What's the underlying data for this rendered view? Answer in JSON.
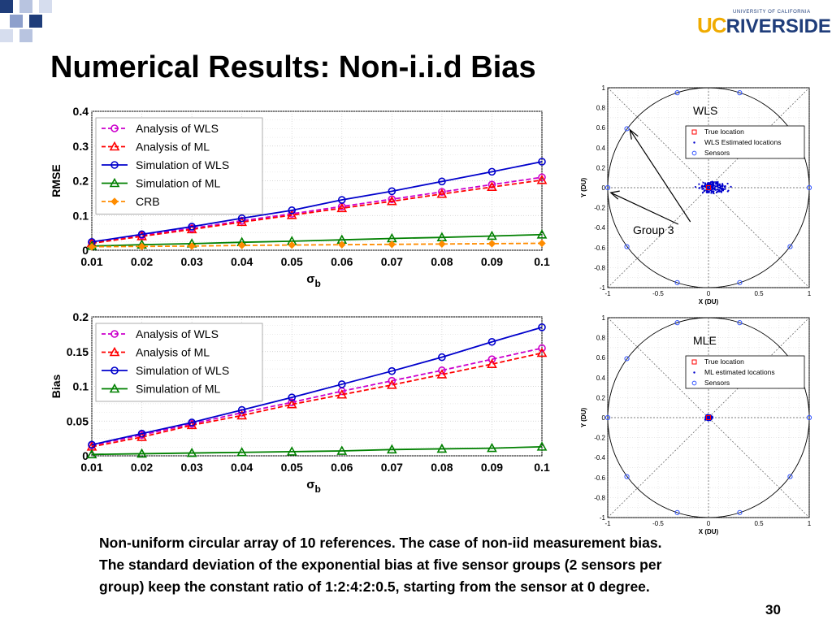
{
  "slide": {
    "title": "Numerical Results: Non-i.i.d Bias",
    "logo_uc": "UC",
    "logo_riverside": "RIVERSIDE",
    "logo_small": "UNIVERSITY OF CALIFORNIA",
    "caption": "Non-uniform circular array of 10 references. The case of non-iid measurement bias. The standard deviation of the exponential bias at five sensor groups (2 sensors per group) keep the constant ratio of 1:2:4:2:0.5, starting from the sensor at 0 degree.",
    "page_number": "30",
    "colors": {
      "magenta": "#cc00cc",
      "red": "#ff0000",
      "blue": "#0000cc",
      "green": "#008000",
      "orange": "#ff8c00",
      "sensor": "#3355ff"
    }
  },
  "chart_data": [
    {
      "type": "line",
      "ylabel": "RMSE",
      "xlabel_main": "σ",
      "xlabel_sub": "b",
      "xlim": [
        0.01,
        0.1
      ],
      "ylim": [
        0,
        0.4
      ],
      "x": [
        0.01,
        0.02,
        0.03,
        0.04,
        0.05,
        0.06,
        0.07,
        0.08,
        0.09,
        0.1
      ],
      "xticks": [
        "0.01",
        "0.02",
        "0.03",
        "0.04",
        "0.05",
        "0.06",
        "0.07",
        "0.08",
        "0.09",
        "0.1"
      ],
      "yticks": [
        "0",
        "0.1",
        "0.2",
        "0.3",
        "0.4"
      ],
      "ytick_values": [
        0,
        0.1,
        0.2,
        0.3,
        0.4
      ],
      "grid": true,
      "legend_position": "top-left",
      "series": [
        {
          "name": "Analysis of WLS",
          "color": "#cc00cc",
          "dash": true,
          "marker": "circle",
          "values": [
            0.022,
            0.043,
            0.063,
            0.085,
            0.105,
            0.126,
            0.147,
            0.168,
            0.189,
            0.21
          ]
        },
        {
          "name": "Analysis of ML",
          "color": "#ff0000",
          "dash": true,
          "marker": "triangle",
          "values": [
            0.02,
            0.04,
            0.06,
            0.081,
            0.101,
            0.121,
            0.141,
            0.162,
            0.182,
            0.202
          ]
        },
        {
          "name": "Simulation of WLS",
          "color": "#0000cc",
          "dash": false,
          "marker": "circle",
          "values": [
            0.024,
            0.046,
            0.068,
            0.092,
            0.115,
            0.145,
            0.17,
            0.198,
            0.226,
            0.255
          ]
        },
        {
          "name": "Simulation of ML",
          "color": "#008000",
          "dash": false,
          "marker": "triangle",
          "values": [
            0.012,
            0.016,
            0.019,
            0.023,
            0.026,
            0.03,
            0.034,
            0.037,
            0.041,
            0.045
          ]
        },
        {
          "name": "CRB",
          "color": "#ff8c00",
          "dash": true,
          "marker": "diamond",
          "values": [
            0.01,
            0.011,
            0.012,
            0.014,
            0.015,
            0.016,
            0.017,
            0.018,
            0.019,
            0.02
          ]
        }
      ]
    },
    {
      "type": "line",
      "ylabel": "Bias",
      "xlabel_main": "σ",
      "xlabel_sub": "b",
      "xlim": [
        0.01,
        0.1
      ],
      "ylim": [
        0,
        0.2
      ],
      "x": [
        0.01,
        0.02,
        0.03,
        0.04,
        0.05,
        0.06,
        0.07,
        0.08,
        0.09,
        0.1
      ],
      "xticks": [
        "0.01",
        "0.02",
        "0.03",
        "0.04",
        "0.05",
        "0.06",
        "0.07",
        "0.08",
        "0.09",
        "0.1"
      ],
      "yticks": [
        "0",
        "0.05",
        "0.1",
        "0.15",
        "0.2"
      ],
      "ytick_values": [
        0,
        0.05,
        0.1,
        0.15,
        0.2
      ],
      "grid": true,
      "legend_position": "top-left",
      "series": [
        {
          "name": "Analysis of WLS",
          "color": "#cc00cc",
          "dash": true,
          "marker": "circle",
          "values": [
            0.015,
            0.03,
            0.046,
            0.062,
            0.077,
            0.093,
            0.108,
            0.123,
            0.139,
            0.155
          ]
        },
        {
          "name": "Analysis of ML",
          "color": "#ff0000",
          "dash": true,
          "marker": "triangle",
          "values": [
            0.013,
            0.027,
            0.044,
            0.058,
            0.074,
            0.088,
            0.102,
            0.117,
            0.132,
            0.148
          ]
        },
        {
          "name": "Simulation of WLS",
          "color": "#0000cc",
          "dash": false,
          "marker": "circle",
          "values": [
            0.016,
            0.032,
            0.048,
            0.066,
            0.084,
            0.103,
            0.122,
            0.142,
            0.164,
            0.185
          ]
        },
        {
          "name": "Simulation of ML",
          "color": "#008000",
          "dash": false,
          "marker": "triangle",
          "values": [
            0.002,
            0.003,
            0.004,
            0.005,
            0.006,
            0.007,
            0.009,
            0.01,
            0.011,
            0.013
          ]
        }
      ]
    },
    {
      "type": "scatter",
      "annotation": "WLS",
      "extra_annotation": "Group 3",
      "xlabel": "X (DU)",
      "ylabel": "Y (DU)",
      "xlim": [
        -1,
        1
      ],
      "ylim": [
        -1,
        1
      ],
      "xticks": [
        "-1",
        "-0.5",
        "0",
        "0.5",
        "1"
      ],
      "xtick_values": [
        -1,
        -0.5,
        0,
        0.5,
        1
      ],
      "yticks": [
        "-1",
        "-0.8",
        "-0.6",
        "-0.4",
        "-0.2",
        "0",
        "0.2",
        "0.4",
        "0.6",
        "0.8",
        "1"
      ],
      "ytick_values": [
        -1,
        -0.8,
        -0.6,
        -0.4,
        -0.2,
        0,
        0.2,
        0.4,
        0.6,
        0.8,
        1
      ],
      "legend": [
        "True location",
        "WLS Estimated locations",
        "Sensors"
      ],
      "legend_position": "top-right",
      "sensors": [
        [
          1,
          0
        ],
        [
          0.81,
          0.59
        ],
        [
          0.31,
          0.95
        ],
        [
          -0.31,
          0.95
        ],
        [
          -0.81,
          0.59
        ],
        [
          -1,
          0
        ],
        [
          -0.81,
          -0.59
        ],
        [
          -0.31,
          -0.95
        ],
        [
          0.31,
          -0.95
        ],
        [
          0.81,
          -0.59
        ]
      ],
      "true_location": [
        0,
        0
      ],
      "estimate_cluster": {
        "center": [
          0.05,
          0.0
        ],
        "spread_x": 0.12,
        "spread_y": 0.06,
        "count": 160
      }
    },
    {
      "type": "scatter",
      "annotation": "MLE",
      "xlabel": "X (DU)",
      "ylabel": "Y (DU)",
      "xlim": [
        -1,
        1
      ],
      "ylim": [
        -1,
        1
      ],
      "xticks": [
        "-1",
        "-0.5",
        "0",
        "0.5",
        "1"
      ],
      "xtick_values": [
        -1,
        -0.5,
        0,
        0.5,
        1
      ],
      "yticks": [
        "-1",
        "-0.8",
        "-0.6",
        "-0.4",
        "-0.2",
        "0",
        "0.2",
        "0.4",
        "0.6",
        "0.8",
        "1"
      ],
      "ytick_values": [
        -1,
        -0.8,
        -0.6,
        -0.4,
        -0.2,
        0,
        0.2,
        0.4,
        0.6,
        0.8,
        1
      ],
      "legend": [
        "True location",
        "ML estimated locations",
        "Sensors"
      ],
      "legend_position": "top-right",
      "sensors": [
        [
          1,
          0
        ],
        [
          0.81,
          0.59
        ],
        [
          0.31,
          0.95
        ],
        [
          -0.31,
          0.95
        ],
        [
          -0.81,
          0.59
        ],
        [
          -1,
          0
        ],
        [
          -0.81,
          -0.59
        ],
        [
          -0.31,
          -0.95
        ],
        [
          0.31,
          -0.95
        ],
        [
          0.81,
          -0.59
        ]
      ],
      "true_location": [
        0,
        0
      ],
      "estimate_cluster": {
        "center": [
          0.0,
          0.0
        ],
        "spread_x": 0.03,
        "spread_y": 0.03,
        "count": 120
      }
    }
  ]
}
